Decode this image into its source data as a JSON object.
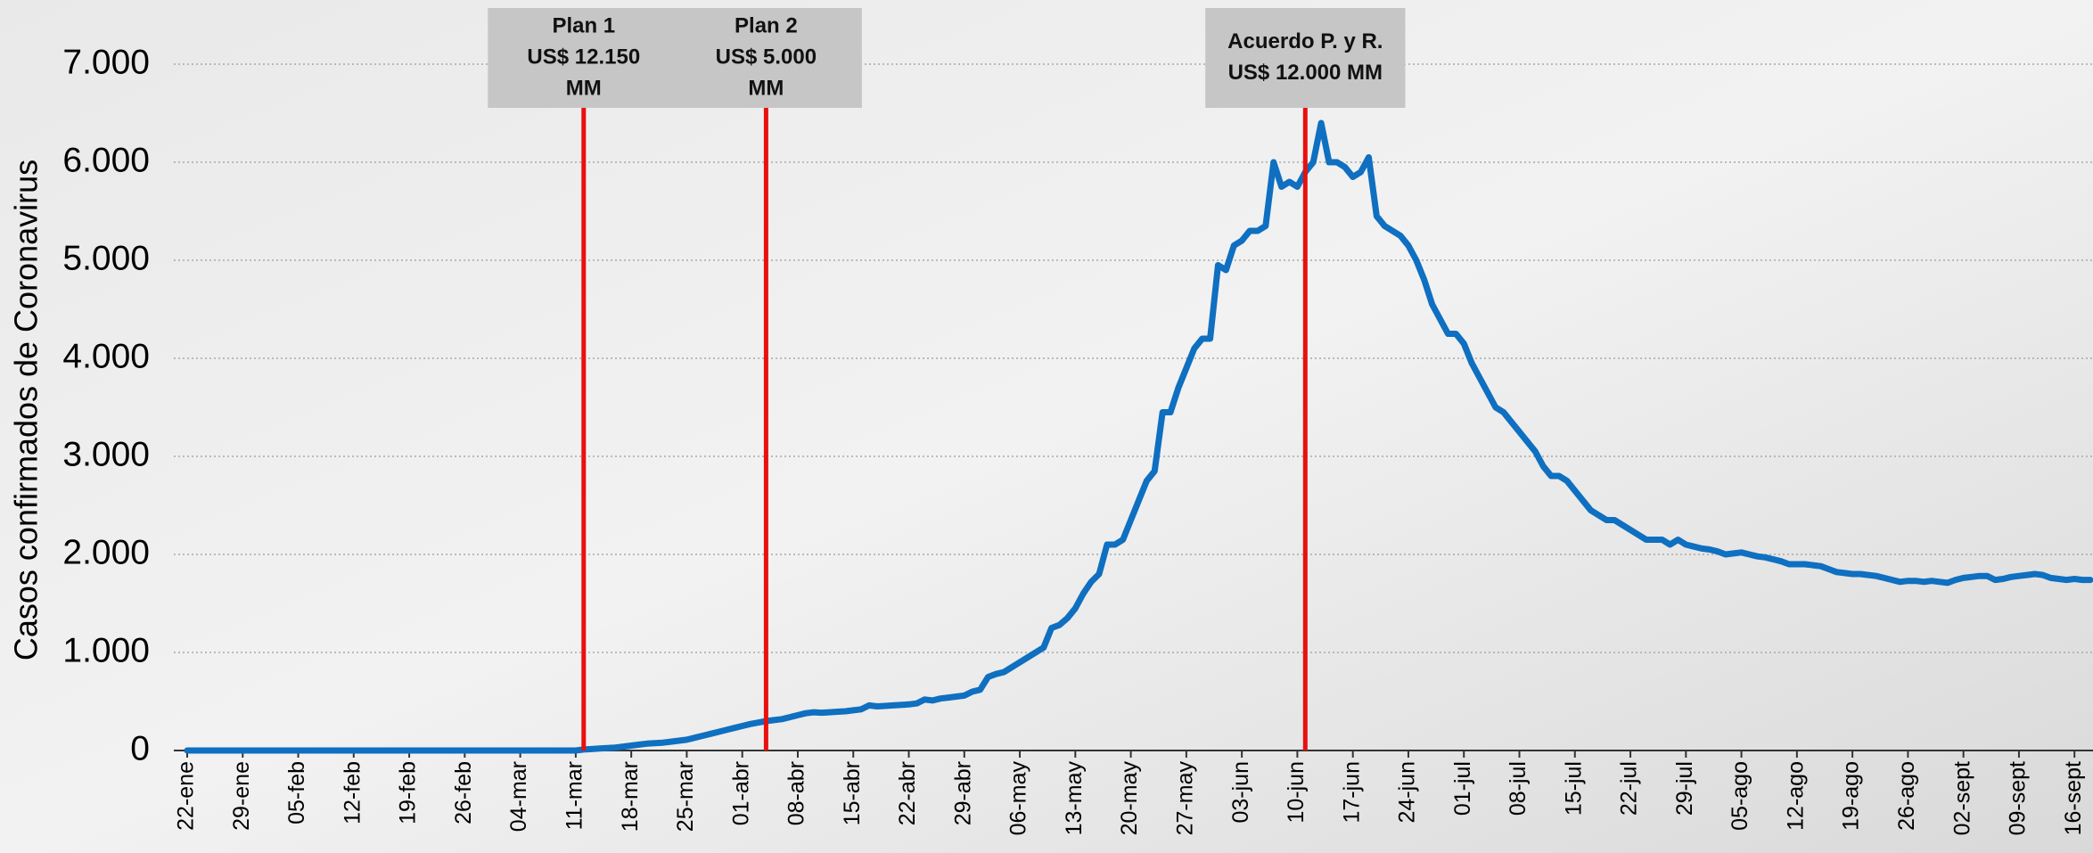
{
  "chart_data": {
    "type": "line",
    "ylabel": "Casos confirmados de Coronavirus",
    "color": "#0f6fc0",
    "annotation_color": "#e81010",
    "grid": true,
    "ylim": [
      0,
      7000
    ],
    "yticks": [
      0,
      {
        "value": 1000,
        "label": "1.000"
      },
      {
        "value": 2000,
        "label": "2.000"
      },
      {
        "value": 3000,
        "label": "3.000"
      },
      {
        "value": 4000,
        "label": "4.000"
      },
      {
        "value": 5000,
        "label": "5.000"
      },
      {
        "value": 6000,
        "label": "6.000"
      },
      {
        "value": 7000,
        "label": "7.000"
      }
    ],
    "annotations": [
      {
        "lines": [
          "Plan 1",
          "US$ 12.150",
          "MM"
        ],
        "at": 50
      },
      {
        "lines": [
          "Plan 2",
          "US$ 5.000",
          "MM"
        ],
        "at": 73
      },
      {
        "lines": [
          "Acuerdo P. y R.",
          "US$ 12.000 MM"
        ],
        "at": 141
      }
    ],
    "categories": [
      "22-ene",
      null,
      null,
      null,
      null,
      null,
      null,
      "29-ene",
      null,
      null,
      null,
      null,
      null,
      null,
      "05-feb",
      null,
      null,
      null,
      null,
      null,
      null,
      "12-feb",
      null,
      null,
      null,
      null,
      null,
      null,
      "19-feb",
      null,
      null,
      null,
      null,
      null,
      null,
      "26-feb",
      null,
      null,
      null,
      null,
      null,
      null,
      "04-mar",
      null,
      null,
      null,
      null,
      null,
      null,
      "11-mar",
      null,
      null,
      null,
      null,
      null,
      null,
      "18-mar",
      null,
      null,
      null,
      null,
      null,
      null,
      "25-mar",
      null,
      null,
      null,
      null,
      null,
      null,
      "01-abr",
      null,
      null,
      null,
      null,
      null,
      null,
      "08-abr",
      null,
      null,
      null,
      null,
      null,
      null,
      "15-abr",
      null,
      null,
      null,
      null,
      null,
      null,
      "22-abr",
      null,
      null,
      null,
      null,
      null,
      null,
      "29-abr",
      null,
      null,
      null,
      null,
      null,
      null,
      "06-may",
      null,
      null,
      null,
      null,
      null,
      null,
      "13-may",
      null,
      null,
      null,
      null,
      null,
      null,
      "20-may",
      null,
      null,
      null,
      null,
      null,
      null,
      "27-may",
      null,
      null,
      null,
      null,
      null,
      null,
      "03-jun",
      null,
      null,
      null,
      null,
      null,
      null,
      "10-jun",
      null,
      null,
      null,
      null,
      null,
      null,
      "17-jun",
      null,
      null,
      null,
      null,
      null,
      null,
      "24-jun",
      null,
      null,
      null,
      null,
      null,
      null,
      "01-jul",
      null,
      null,
      null,
      null,
      null,
      null,
      "08-jul",
      null,
      null,
      null,
      null,
      null,
      null,
      "15-jul",
      null,
      null,
      null,
      null,
      null,
      null,
      "22-jul",
      null,
      null,
      null,
      null,
      null,
      null,
      "29-jul",
      null,
      null,
      null,
      null,
      null,
      null,
      "05-ago",
      null,
      null,
      null,
      null,
      null,
      null,
      "12-ago",
      null,
      null,
      null,
      null,
      null,
      null,
      "19-ago",
      null,
      null,
      null,
      null,
      null,
      null,
      "26-ago",
      null,
      null,
      null,
      null,
      null,
      null,
      "02-sept",
      null,
      null,
      null,
      null,
      null,
      null,
      "09-sept",
      null,
      null,
      null,
      null,
      null,
      null,
      "16-sept",
      null,
      null
    ],
    "values": [
      0,
      0,
      0,
      0,
      0,
      0,
      0,
      0,
      0,
      0,
      0,
      0,
      0,
      0,
      0,
      0,
      0,
      0,
      0,
      0,
      0,
      0,
      0,
      0,
      0,
      0,
      0,
      0,
      0,
      0,
      0,
      0,
      0,
      0,
      0,
      0,
      0,
      0,
      0,
      0,
      0,
      0,
      0,
      0,
      0,
      0,
      0,
      0,
      0,
      0,
      10,
      15,
      20,
      25,
      30,
      40,
      50,
      60,
      70,
      75,
      80,
      90,
      100,
      110,
      130,
      150,
      170,
      190,
      210,
      230,
      250,
      270,
      285,
      300,
      310,
      320,
      340,
      360,
      380,
      390,
      385,
      390,
      395,
      400,
      410,
      420,
      460,
      450,
      455,
      460,
      465,
      470,
      480,
      520,
      510,
      530,
      540,
      550,
      560,
      600,
      620,
      750,
      780,
      800,
      850,
      900,
      950,
      1000,
      1050,
      1250,
      1280,
      1350,
      1450,
      1600,
      1720,
      1800,
      2100,
      2100,
      2150,
      2350,
      2550,
      2750,
      2850,
      3450,
      3450,
      3700,
      3900,
      4100,
      4200,
      4200,
      4950,
      4900,
      5150,
      5200,
      5300,
      5300,
      5350,
      6000,
      5750,
      5800,
      5750,
      5900,
      6000,
      6400,
      6000,
      6000,
      5950,
      5850,
      5900,
      6050,
      5450,
      5350,
      5300,
      5250,
      5150,
      5000,
      4800,
      4550,
      4400,
      4250,
      4250,
      4150,
      3950,
      3800,
      3650,
      3500,
      3450,
      3350,
      3250,
      3150,
      3050,
      2900,
      2800,
      2800,
      2750,
      2650,
      2550,
      2450,
      2400,
      2350,
      2350,
      2300,
      2250,
      2200,
      2150,
      2150,
      2150,
      2100,
      2150,
      2100,
      2080,
      2060,
      2050,
      2030,
      2000,
      2010,
      2020,
      2000,
      1980,
      1970,
      1950,
      1930,
      1900,
      1900,
      1900,
      1890,
      1880,
      1850,
      1820,
      1810,
      1800,
      1800,
      1790,
      1780,
      1760,
      1740,
      1720,
      1730,
      1730,
      1720,
      1730,
      1720,
      1710,
      1740,
      1760,
      1770,
      1780,
      1780,
      1740,
      1750,
      1770,
      1780,
      1790,
      1800,
      1790,
      1760,
      1750,
      1740,
      1750,
      1740,
      1740
    ]
  }
}
